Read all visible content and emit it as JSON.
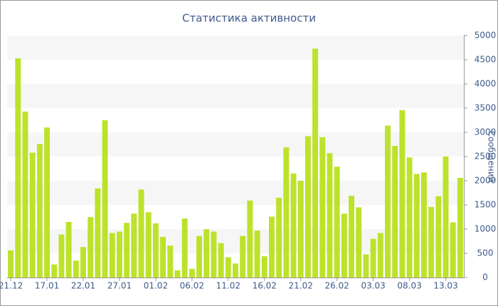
{
  "chart_data": {
    "type": "bar",
    "title": "Статистика активности",
    "y_label": "Сообщений",
    "categories": [
      "21.12",
      null,
      null,
      null,
      null,
      "17.01",
      null,
      null,
      null,
      null,
      "22.01",
      null,
      null,
      null,
      null,
      "27.01",
      null,
      null,
      null,
      null,
      "01.02",
      null,
      null,
      null,
      null,
      "06.02",
      null,
      null,
      null,
      null,
      "11.02",
      null,
      null,
      null,
      null,
      "16.02",
      null,
      null,
      null,
      null,
      "21.02",
      null,
      null,
      null,
      null,
      "26.02",
      null,
      null,
      null,
      null,
      "03.03",
      null,
      null,
      null,
      null,
      "08.03",
      null,
      null,
      null,
      null,
      "13.03",
      null,
      null
    ],
    "values": [
      560,
      4530,
      3430,
      2580,
      2760,
      3100,
      270,
      890,
      1150,
      350,
      630,
      1250,
      1840,
      3250,
      920,
      950,
      1130,
      1320,
      1820,
      1350,
      1120,
      840,
      660,
      150,
      1220,
      180,
      860,
      1000,
      950,
      710,
      420,
      290,
      860,
      1590,
      970,
      440,
      1260,
      1650,
      2690,
      2150,
      2000,
      2920,
      4730,
      2900,
      2570,
      2290,
      1320,
      1690,
      1450,
      480,
      800,
      920,
      3140,
      2720,
      3460,
      2480,
      2140,
      2170,
      1460,
      1680,
      2500,
      1140,
      2060
    ],
    "color": "#bde22b",
    "ylim": [
      0,
      5000
    ],
    "yticks": [
      0,
      500,
      1000,
      1500,
      2000,
      2500,
      3000,
      3500,
      4000,
      4500,
      5000
    ],
    "grid": true
  }
}
